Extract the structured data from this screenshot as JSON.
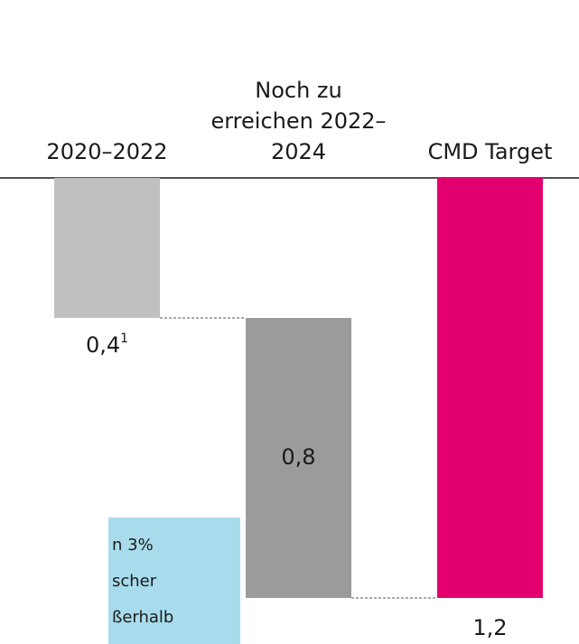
{
  "chart_data": {
    "type": "waterfall",
    "categories": [
      "2020–2022",
      "Noch zu erreichen 2022–2024",
      "CMD Target"
    ],
    "values": [
      0.4,
      0.8,
      1.2
    ],
    "value_labels": [
      "0,4",
      "0,8",
      "1,2"
    ],
    "footnote_marker": "1",
    "totals": [
      false,
      false,
      true
    ],
    "colors": [
      "#c0c0c0",
      "#9b9b9b",
      "#e2006f"
    ],
    "note": [
      "n 3%",
      "scher",
      "ßerhalb"
    ]
  }
}
